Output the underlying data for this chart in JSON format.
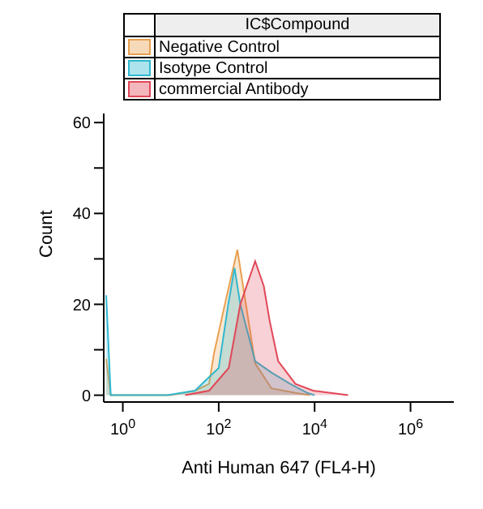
{
  "chart_data": {
    "type": "area",
    "xlabel": "Anti Human 647 (FL4-H)",
    "ylabel": "Count",
    "legend_title": "IC$Compound",
    "legend": "top",
    "log": "x",
    "xlim": [
      0.4,
      8000000
    ],
    "xticks": [
      {
        "value": 1,
        "label": "10$^{0}$"
      },
      {
        "value": 100,
        "label": "10$^{2}$"
      },
      {
        "value": 10000,
        "label": "10$^{4}$"
      },
      {
        "value": 1000000,
        "label": "10$^{6}$"
      }
    ],
    "ylim": [
      -1.5,
      62
    ],
    "yticks": [
      0,
      {
        "value": 10,
        "label": null
      },
      20,
      {
        "value": 30,
        "label": null
      },
      40,
      {
        "value": 50,
        "label": null
      },
      60
    ],
    "series": [
      {
        "name": "Negative Control",
        "color": "#e8a050",
        "x": [
          0.45,
          0.56,
          10,
          32,
          63,
          79,
          141,
          245,
          575,
          1259,
          3981,
          7943
        ],
        "values": [
          8,
          0,
          0,
          1,
          2.5,
          9,
          21,
          32,
          7,
          1.5,
          0.5,
          0
        ]
      },
      {
        "name": "Isotype Control",
        "color": "#30b8d0",
        "x": [
          0.45,
          0.56,
          8.5,
          32,
          100,
          158,
          214,
          282,
          575,
          1259,
          3090,
          7079,
          10000
        ],
        "values": [
          22,
          0,
          0,
          1,
          6,
          20,
          28,
          20,
          7.5,
          5,
          2.5,
          0.5,
          0
        ]
      },
      {
        "name": "commercial Antibody",
        "color": "#e04858",
        "x": [
          20,
          63,
          162,
          282,
          575,
          871,
          1148,
          1738,
          3981,
          9333,
          50119
        ],
        "values": [
          0,
          1,
          6,
          20,
          29.5,
          24,
          16.5,
          7.5,
          2.5,
          1,
          0
        ]
      }
    ]
  }
}
